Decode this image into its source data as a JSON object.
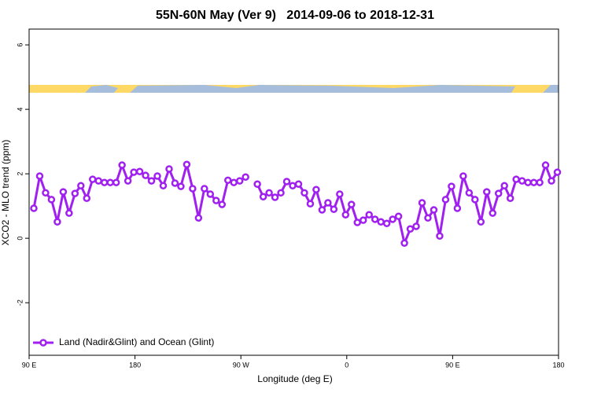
{
  "chart_data": {
    "type": "line",
    "title": "55N-60N May (Ver 9)   2014-09-06 to 2018-12-31",
    "x_label": "Longitude (deg E)",
    "y_label": "XCO2 - MLO trend (ppm)",
    "xlim": [
      90,
      540
    ],
    "ylim": [
      -3.63,
      6.49
    ],
    "xticks": [
      {
        "value": 90,
        "label": "90 E"
      },
      180,
      {
        "value": 270,
        "label": "90 W"
      },
      {
        "value": 360,
        "label": "0"
      },
      {
        "value": 450,
        "label": "90 E"
      },
      180.0001
    ],
    "yticks": [
      -2,
      0,
      2,
      4,
      6
    ],
    "legend": "bottom-left",
    "x": [
      94,
      99,
      104,
      109,
      114,
      119,
      124,
      129,
      134,
      139,
      144,
      149,
      154,
      159,
      164,
      169,
      174,
      179,
      184,
      189,
      194,
      199,
      204,
      209,
      214,
      219,
      224,
      229,
      234,
      239,
      244,
      249,
      254,
      259,
      264,
      269,
      274,
      279,
      284,
      289,
      294,
      299,
      304,
      309,
      314,
      319,
      324,
      329,
      334,
      339,
      344,
      349,
      354,
      359,
      364,
      369,
      374,
      379,
      384,
      389,
      394,
      399,
      404,
      409,
      414,
      419,
      424,
      429,
      434,
      439,
      444,
      449,
      454,
      459,
      464,
      469,
      474,
      479,
      484,
      489,
      494,
      499,
      504,
      509,
      514,
      519,
      524,
      529,
      534,
      539
    ],
    "series": [
      {
        "name": "Land (Nadir&Glint) and Ocean (Glint)",
        "color": "#a020f0",
        "values": [
          0.93,
          1.93,
          1.41,
          1.2,
          0.51,
          1.44,
          0.78,
          1.39,
          1.63,
          1.24,
          1.83,
          1.78,
          1.73,
          1.73,
          1.73,
          2.27,
          1.78,
          2.05,
          2.07,
          1.95,
          1.78,
          1.93,
          1.63,
          2.15,
          1.71,
          1.61,
          2.29,
          1.54,
          0.63,
          1.54,
          1.37,
          1.17,
          1.05,
          1.8,
          1.73,
          1.78,
          1.9,
          null,
          1.68,
          1.29,
          1.41,
          1.27,
          1.41,
          1.76,
          1.63,
          1.68,
          1.41,
          1.07,
          1.51,
          0.88,
          1.1,
          0.9,
          1.37,
          0.73,
          1.05,
          0.49,
          0.56,
          0.73,
          0.59,
          0.51,
          0.46,
          0.59,
          0.68,
          -0.15,
          0.29,
          0.37,
          1.1,
          0.63,
          0.88,
          0.07,
          1.2,
          1.61,
          0.93,
          1.93,
          1.41,
          1.2,
          0.51,
          1.44,
          0.78,
          1.39,
          1.63,
          1.24,
          1.83,
          1.78,
          1.73,
          1.73,
          1.73,
          2.27,
          1.78,
          2.05
        ]
      }
    ]
  }
}
